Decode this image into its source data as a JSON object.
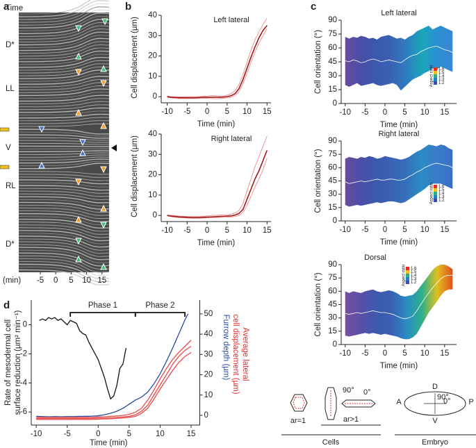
{
  "chart_data": [
    {
      "type": "image",
      "panel": "a",
      "title": "Time",
      "xlabel": "(min)",
      "xlim": [
        -12,
        17.3
      ],
      "xticks": [
        -5,
        0,
        5,
        10,
        15
      ],
      "row_labels": [
        "D*",
        "LL",
        "V",
        "RL",
        "D*"
      ]
    },
    {
      "type": "line",
      "panel": "b",
      "title": "Left lateral",
      "xlabel": "Time (min)",
      "ylabel": "Cell displacement (µm)",
      "x": [
        -10,
        -9,
        -8,
        -7,
        -6,
        -5,
        -4,
        -3,
        -2,
        -1,
        0,
        1,
        2,
        3,
        4,
        5,
        6,
        7,
        8,
        9,
        10,
        11,
        12,
        13,
        14,
        15
      ],
      "series": [
        {
          "color": "#f08a8a",
          "values": [
            0.3,
            0,
            0,
            -0.1,
            -0.1,
            0,
            0,
            0,
            0,
            0.2,
            0.3,
            0.5,
            0.6,
            0.3,
            0.3,
            0.8,
            1.5,
            3,
            6,
            11,
            17,
            23,
            28,
            32,
            35.5,
            38.5
          ]
        },
        {
          "color": "#f08a8a",
          "values": [
            -0.3,
            -0.6,
            -0.8,
            -0.9,
            -0.9,
            -0.9,
            -0.9,
            -0.9,
            -0.8,
            -0.8,
            -0.8,
            -0.9,
            -1,
            -0.9,
            -0.8,
            -0.6,
            -0.2,
            0.5,
            2.5,
            6.5,
            11.5,
            17,
            22,
            26.5,
            30,
            33.5
          ]
        },
        {
          "color": "#9e1b1b",
          "values": [
            0,
            -0.3,
            -0.4,
            -0.5,
            -0.5,
            -0.5,
            -0.5,
            -0.5,
            -0.4,
            -0.3,
            -0.3,
            -0.3,
            -0.2,
            -0.3,
            -0.2,
            0,
            0.5,
            1.5,
            4,
            8.5,
            14,
            19.5,
            24.5,
            29,
            32.5,
            35
          ]
        }
      ],
      "xlim": [
        -11.5,
        16
      ],
      "xticks": [
        -10,
        -5,
        0,
        5,
        10,
        15
      ],
      "ylim": [
        -3,
        40
      ],
      "yticks": [
        0,
        10,
        20,
        30,
        40
      ]
    },
    {
      "type": "line",
      "title": "Right lateral",
      "xlabel": "Time (min)",
      "ylabel": "Cell displacement (µm)",
      "x": [
        -10,
        -9,
        -8,
        -7,
        -6,
        -5,
        -4,
        -3,
        -2,
        -1,
        0,
        1,
        2,
        3,
        4,
        5,
        6,
        7,
        8,
        9,
        10,
        11,
        12,
        13,
        14,
        15
      ],
      "series": [
        {
          "color": "#f08a8a",
          "values": [
            0.2,
            0,
            -0.1,
            -0.3,
            -0.4,
            -0.5,
            -0.5,
            -0.5,
            -0.5,
            -0.4,
            -0.2,
            0,
            0.1,
            0.2,
            0.3,
            0.4,
            0.6,
            1.2,
            2.5,
            6,
            12,
            18,
            24,
            29,
            34,
            39
          ]
        },
        {
          "color": "#f08a8a",
          "values": [
            -0.2,
            -0.6,
            -0.9,
            -1.1,
            -1.2,
            -1.3,
            -1.4,
            -1.4,
            -1.4,
            -1.3,
            -1.2,
            -1.2,
            -1.1,
            -1,
            -0.9,
            -0.8,
            -0.7,
            -0.5,
            0,
            1.5,
            5,
            9.5,
            14,
            18,
            22.5,
            28
          ]
        },
        {
          "color": "#9e1b1b",
          "values": [
            0,
            -0.3,
            -0.5,
            -0.7,
            -0.8,
            -0.9,
            -1,
            -1,
            -1,
            -0.9,
            -0.8,
            -0.7,
            -0.6,
            -0.5,
            -0.4,
            -0.3,
            -0.2,
            0.2,
            1,
            3,
            8,
            13,
            18,
            22,
            27,
            32
          ]
        }
      ],
      "xlim": [
        -11.5,
        16
      ],
      "xticks": [
        -10,
        -5,
        0,
        5,
        10,
        15
      ],
      "ylim": [
        -3,
        40
      ],
      "yticks": [
        0,
        10,
        20,
        30,
        40
      ]
    },
    {
      "type": "range-band",
      "panel": "c",
      "title": "Left lateral",
      "xlabel": "Time (min)",
      "ylabel": "Cell orientation (°)",
      "x": [
        -10,
        -9,
        -8,
        -7,
        -6,
        -5,
        -4,
        -3,
        -2,
        -1,
        0,
        1,
        2,
        3,
        4,
        5,
        6,
        7,
        8,
        9,
        10,
        11,
        12,
        13,
        14,
        15,
        16,
        17
      ],
      "upper": [
        72,
        70,
        72,
        71,
        73,
        72,
        70,
        71,
        69,
        72,
        73,
        74,
        72,
        70,
        71,
        69,
        72,
        74,
        78,
        80,
        82,
        84,
        80,
        82,
        84,
        82,
        80,
        78
      ],
      "lower": [
        20,
        18,
        20,
        22,
        19,
        20,
        21,
        22,
        20,
        19,
        20,
        21,
        22,
        20,
        14,
        18,
        22,
        26,
        28,
        30,
        33,
        35,
        38,
        36,
        40,
        38,
        36,
        34
      ],
      "mean": [
        46,
        45,
        47,
        46,
        44,
        45,
        47,
        48,
        47,
        45,
        46,
        47,
        46,
        45,
        44,
        47,
        50,
        52,
        53,
        56,
        58,
        60,
        61,
        62,
        60,
        58,
        57,
        55
      ],
      "mean_color": "#ffffff",
      "gradient": [
        "#6b4a9e",
        "#4a4fa6",
        "#3c58ae",
        "#3a62b4",
        "#2f7cc0",
        "#1aa6b8",
        "#2a8fd0",
        "#3a86d4"
      ],
      "colorbar": {
        "title": "Aspect ratio",
        "ticks": [
          1.6,
          1.5,
          1.4,
          1.3,
          1.2
        ],
        "colors": [
          "#e03020",
          "#f0c020",
          "#30b080",
          "#2080c0",
          "#3a4fa8"
        ],
        "corner": "lower-right"
      },
      "xlim": [
        -11,
        18
      ],
      "xticks": [
        -10,
        -5,
        0,
        5,
        10,
        15
      ],
      "ylim": [
        0,
        90
      ],
      "yticks": [
        0,
        15,
        30,
        45,
        60,
        75,
        90
      ]
    },
    {
      "type": "range-band",
      "title": "Right lateral",
      "xlabel": "Time (min)",
      "ylabel": "Cell orientation (°)",
      "x": [
        -10,
        -9,
        -8,
        -7,
        -6,
        -5,
        -4,
        -3,
        -2,
        -1,
        0,
        1,
        2,
        3,
        4,
        5,
        6,
        7,
        8,
        9,
        10,
        11,
        12,
        13,
        14,
        15,
        16,
        17
      ],
      "upper": [
        70,
        72,
        71,
        70,
        72,
        71,
        73,
        72,
        70,
        71,
        73,
        72,
        71,
        70,
        69,
        70,
        72,
        75,
        78,
        80,
        83,
        86,
        85,
        84,
        86,
        85,
        82,
        80
      ],
      "lower": [
        18,
        16,
        17,
        18,
        17,
        18,
        19,
        20,
        21,
        20,
        21,
        22,
        22,
        21,
        20,
        21,
        24,
        27,
        30,
        33,
        36,
        40,
        42,
        42,
        42,
        40,
        38,
        36
      ],
      "mean": [
        44,
        42,
        43,
        44,
        45,
        44,
        45,
        46,
        47,
        46,
        46,
        47,
        47,
        46,
        46,
        47,
        50,
        52,
        55,
        57,
        60,
        62,
        64,
        65,
        64,
        63,
        62,
        60
      ],
      "mean_color": "#ffffff",
      "gradient": [
        "#6b4a9e",
        "#4a4fa6",
        "#3c58ae",
        "#3a62b4",
        "#3670bc",
        "#2a8cc4",
        "#3a7ac8",
        "#3a6fc4"
      ],
      "colorbar": {
        "title": "Aspect ratio",
        "ticks": [
          1.6,
          1.5,
          1.4,
          1.3,
          1.2
        ],
        "colors": [
          "#e03020",
          "#f0c020",
          "#30b080",
          "#2080c0",
          "#3a4fa8"
        ],
        "corner": "lower-right"
      },
      "xlim": [
        -11,
        18
      ],
      "xticks": [
        -10,
        -5,
        0,
        5,
        10,
        15
      ],
      "ylim": [
        0,
        90
      ],
      "yticks": [
        0,
        15,
        30,
        45,
        60,
        75,
        90
      ]
    },
    {
      "type": "range-band",
      "title": "Dorsal",
      "xlabel": "Time (min)",
      "ylabel": "Cell orientation (°)",
      "x": [
        -10,
        -9,
        -8,
        -7,
        -6,
        -5,
        -4,
        -3,
        -2,
        -1,
        0,
        1,
        2,
        3,
        4,
        5,
        6,
        7,
        8,
        9,
        10,
        11,
        12,
        13,
        14,
        15,
        16,
        17
      ],
      "upper": [
        60,
        58,
        60,
        59,
        58,
        60,
        61,
        62,
        60,
        59,
        60,
        61,
        60,
        58,
        55,
        54,
        55,
        56,
        60,
        66,
        72,
        78,
        84,
        88,
        90,
        90,
        88,
        85
      ],
      "lower": [
        10,
        9,
        10,
        11,
        12,
        13,
        12,
        13,
        12,
        11,
        12,
        11,
        10,
        9,
        7,
        6,
        6,
        8,
        12,
        20,
        28,
        36,
        42,
        48,
        55,
        60,
        62,
        62
      ],
      "mean": [
        35,
        34,
        35,
        36,
        35,
        36,
        37,
        38,
        37,
        36,
        36,
        35,
        34,
        32,
        30,
        29,
        30,
        32,
        38,
        45,
        52,
        58,
        64,
        69,
        74,
        77,
        78,
        78
      ],
      "mean_color": "#ffffff",
      "gradient": [
        "#7a4ea0",
        "#5a4fa6",
        "#3e58ae",
        "#3a5fb2",
        "#2a8cc4",
        "#2cb08a",
        "#e0c020",
        "#e05020"
      ],
      "colorbar": {
        "title": "Aspect ratio",
        "ticks": [
          1.6,
          1.5,
          1.4,
          1.3,
          1.2
        ],
        "colors": [
          "#e03020",
          "#f0c020",
          "#30b080",
          "#2080c0",
          "#3a4fa8"
        ],
        "corner": "upper-left"
      },
      "xlim": [
        -11,
        18
      ],
      "xticks": [
        -10,
        -5,
        0,
        5,
        10,
        15
      ],
      "ylim": [
        0,
        90
      ],
      "yticks": [
        0,
        15,
        30,
        45,
        60,
        75,
        90
      ]
    },
    {
      "type": "dual-axis-line",
      "panel": "d",
      "xlabel": "Time (min)",
      "ylabel": [
        "Rate of mesodermal cell",
        "surface reduction (µm² min⁻¹)"
      ],
      "y2label": "Furrow depth (µm)",
      "y2label_color": "#2a4aa0",
      "y2label_secondary": [
        "Average lateral",
        "cell displacement (µm)"
      ],
      "y2label_secondary_color": "#e03030",
      "phases": [
        {
          "label": "Phase 1",
          "start": -4.5,
          "end": 6
        },
        {
          "label": "Phase 2",
          "start": 6,
          "end": 14
        }
      ],
      "series": [
        {
          "color": "#111111",
          "x": [
            -9.5,
            -9,
            -8.5,
            -8,
            -7.5,
            -7,
            -6.5,
            -6,
            -5.5,
            -5,
            -4.5,
            -4,
            -3.5,
            -3,
            -2.5,
            -2,
            -1.5,
            -1,
            -0.5,
            0,
            0.5,
            1,
            1.5,
            2,
            2.5,
            3,
            3.5,
            4,
            4.5
          ],
          "values": [
            0.3,
            0.4,
            0.3,
            0.5,
            0.4,
            0.5,
            0.3,
            0.4,
            0.2,
            0,
            0.3,
            0.2,
            0.1,
            -0.4,
            -0.6,
            -0.7,
            -1.2,
            -1.6,
            -2.0,
            -2.4,
            -3.0,
            -3.6,
            -4.4,
            -5.1,
            -4.9,
            -4.2,
            -3.0,
            -2.7,
            -1.6
          ]
        },
        {
          "color": "#2a4aa0",
          "axis": "y2",
          "x": [
            -10,
            -9,
            -8,
            -7,
            -6,
            -5,
            -4,
            -3,
            -2,
            -1,
            0,
            1,
            2,
            3,
            4,
            5,
            6,
            7,
            8,
            9,
            10,
            11,
            12,
            13,
            14,
            14.5
          ],
          "values": [
            -0.5,
            -0.6,
            -0.7,
            -0.6,
            -0.7,
            -0.6,
            -0.6,
            -0.5,
            -0.5,
            -0.4,
            -0.2,
            0.3,
            1,
            2,
            3.5,
            5.5,
            7.5,
            9,
            11.5,
            15.5,
            20.5,
            26.5,
            33,
            40,
            47,
            50
          ]
        },
        {
          "color": "#e84a4a",
          "axis": "y2",
          "x": [
            -10,
            -9,
            -8,
            -7,
            -6,
            -5,
            -4,
            -3,
            -2,
            -1,
            0,
            1,
            2,
            3,
            4,
            5,
            6,
            7,
            8,
            9,
            10,
            11,
            12,
            13,
            14,
            15
          ],
          "values": [
            -1,
            -1,
            -1,
            -1,
            -1,
            -1,
            -1,
            -1,
            -1,
            -1,
            -0.8,
            -0.7,
            -0.5,
            -0.3,
            0,
            0.5,
            1.5,
            3.5,
            7.5,
            12.5,
            18,
            23,
            27.5,
            31,
            34,
            37
          ]
        },
        {
          "color": "#e84a4a",
          "axis": "y2",
          "x": [
            -10,
            -9,
            -8,
            -7,
            -6,
            -5,
            -4,
            -3,
            -2,
            -1,
            0,
            1,
            2,
            3,
            4,
            5,
            6,
            7,
            8,
            9,
            10,
            11,
            12,
            13,
            14,
            15
          ],
          "values": [
            -1.5,
            -1.5,
            -1.5,
            -1.5,
            -1.5,
            -1.5,
            -1.5,
            -1.5,
            -1.5,
            -1.5,
            -1.4,
            -1.3,
            -1.2,
            -1,
            -0.8,
            -0.5,
            0.3,
            2,
            5,
            10,
            15,
            20,
            25,
            29,
            32,
            34
          ]
        },
        {
          "color": "#e84a4a",
          "axis": "y2",
          "x": [
            -10,
            -9,
            -8,
            -7,
            -6,
            -5,
            -4,
            -3,
            -2,
            -1,
            0,
            1,
            2,
            3,
            4,
            5,
            6,
            7,
            8,
            9,
            10,
            11,
            12,
            13,
            14,
            15
          ],
          "values": [
            -2,
            -2,
            -2,
            -2,
            -2,
            -2,
            -2,
            -2,
            -2,
            -2,
            -1.9,
            -1.8,
            -1.7,
            -1.5,
            -1.3,
            -1,
            -0.5,
            1,
            3.5,
            8,
            13,
            17.5,
            22,
            26,
            29,
            31
          ]
        }
      ],
      "xlim": [
        -10.8,
        16.4
      ],
      "xticks": [
        -10,
        -5,
        0,
        5,
        10,
        15
      ],
      "ylim": [
        -6.9,
        1.7
      ],
      "yticks": [
        0,
        -2,
        -4,
        -6
      ],
      "y2lim": [
        -4.8,
        56.8
      ],
      "y2ticks": [
        0,
        10,
        20,
        30,
        40,
        50
      ]
    }
  ],
  "diagram": {
    "round": "ar=1",
    "elongated": "ar>1",
    "cell_90": "90°",
    "cell_0": "0°",
    "cells_label": "Cells",
    "dorsal": "D",
    "ventral": "V",
    "anterior": "A",
    "posterior": "P",
    "embryo_90": "90°",
    "embryo_0": "0°",
    "embryo_label": "Embryo"
  }
}
